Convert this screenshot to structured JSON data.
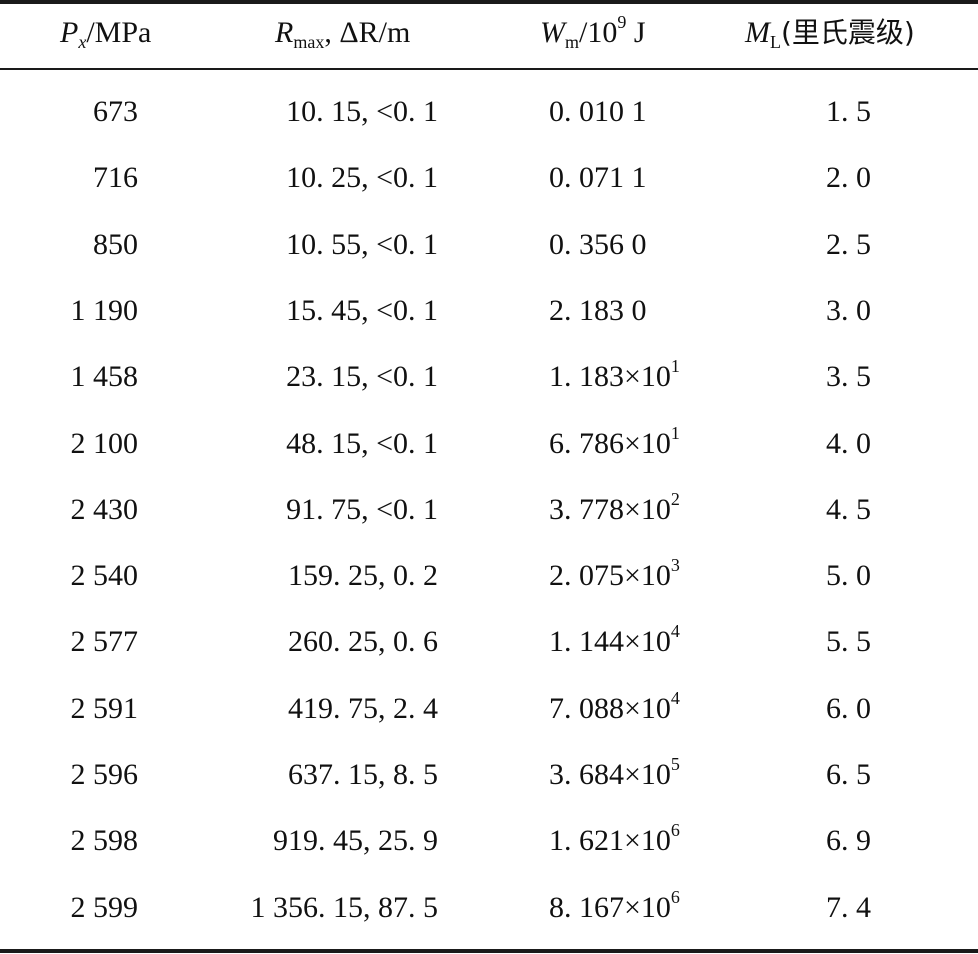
{
  "table": {
    "headers": {
      "px": {
        "sym": "P",
        "sub": "x",
        "unit": "/MPa"
      },
      "r": {
        "sym": "R",
        "sub": "max",
        "unit": ", ΔR/m"
      },
      "w": {
        "sym": "W",
        "sub": "m",
        "unit": "/10",
        "sup": "9",
        "unit2": " J"
      },
      "ml": {
        "sym": "M",
        "sub": "L",
        "unit": "(里氏震级)"
      }
    },
    "rows": [
      {
        "px": "673",
        "r": "10. 15, <0. 1",
        "w": "0. 010 1",
        "wexp": "",
        "ml": "1. 5"
      },
      {
        "px": "716",
        "r": "10. 25, <0. 1",
        "w": "0. 071 1",
        "wexp": "",
        "ml": "2. 0"
      },
      {
        "px": "850",
        "r": "10. 55, <0. 1",
        "w": "0. 356 0",
        "wexp": "",
        "ml": "2. 5"
      },
      {
        "px": "1 190",
        "r": "15. 45, <0. 1",
        "w": "2. 183 0",
        "wexp": "",
        "ml": "3. 0"
      },
      {
        "px": "1 458",
        "r": "23. 15, <0. 1",
        "w": "1. 183×10",
        "wexp": "1",
        "ml": "3. 5"
      },
      {
        "px": "2 100",
        "r": "48. 15, <0. 1",
        "w": "6. 786×10",
        "wexp": "1",
        "ml": "4. 0"
      },
      {
        "px": "2 430",
        "r": "91. 75, <0. 1",
        "w": "3. 778×10",
        "wexp": "2",
        "ml": "4. 5"
      },
      {
        "px": "2 540",
        "r": "159. 25, 0. 2",
        "w": "2. 075×10",
        "wexp": "3",
        "ml": "5. 0"
      },
      {
        "px": "2 577",
        "r": "260. 25, 0. 6",
        "w": "1. 144×10",
        "wexp": "4",
        "ml": "5. 5"
      },
      {
        "px": "2 591",
        "r": "419. 75, 2. 4",
        "w": "7. 088×10",
        "wexp": "4",
        "ml": "6. 0"
      },
      {
        "px": "2 596",
        "r": "637. 15, 8. 5",
        "w": "3. 684×10",
        "wexp": "5",
        "ml": "6. 5"
      },
      {
        "px": "2 598",
        "r": "919. 45, 25. 9",
        "w": "1. 621×10",
        "wexp": "6",
        "ml": "6. 9"
      },
      {
        "px": "2 599",
        "r": "1 356. 15, 87. 5",
        "w": "8. 167×10",
        "wexp": "6",
        "ml": "7. 4"
      }
    ]
  }
}
